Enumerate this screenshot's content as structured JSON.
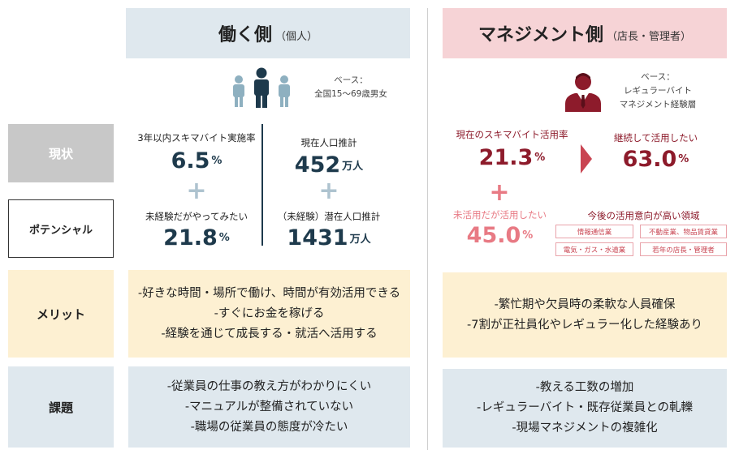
{
  "left_header": {
    "title": "働く側",
    "subtitle": "（個人）"
  },
  "right_header": {
    "title": "マネジメント側",
    "subtitle": "（店長・管理者）"
  },
  "left_base": {
    "line1": "ベース：",
    "line2": "全国15～69歳男女"
  },
  "right_base": {
    "line1": "ベース：",
    "line2": "レギュラーバイト",
    "line3": "マネジメント経験層"
  },
  "rows": {
    "current": "現状",
    "potential": "ポテンシャル",
    "merit": "メリット",
    "issues": "課題"
  },
  "left_stats": {
    "current_rate": {
      "label": "3年以内スキマバイト実施率",
      "value": "6.5",
      "unit": "%"
    },
    "current_pop": {
      "label": "現在人口推計",
      "value": "452",
      "unit": "万人"
    },
    "potential_rate": {
      "label": "未経験だがやってみたい",
      "value": "21.8",
      "unit": "%"
    },
    "potential_pop": {
      "label": "（未経験）潜在人口推計",
      "value": "1431",
      "unit": "万人"
    },
    "plus": "+"
  },
  "right_stats": {
    "current_rate": {
      "label": "現在のスキマバイト活用率",
      "value": "21.3",
      "unit": "%"
    },
    "continue_rate": {
      "label": "継続して活用したい",
      "value": "63.0",
      "unit": "%"
    },
    "potential_rate": {
      "label": "未活用だが活用したい",
      "value": "45.0",
      "unit": "%"
    },
    "industries_title": "今後の活用意向が高い領域",
    "industries": [
      "情報通信業",
      "不動産業、物品賃貸業",
      "電気・ガス・水道業",
      "若年の店長・管理者"
    ],
    "plus": "+"
  },
  "left_merits": [
    "-好きな時間・場所で働け、時間が有効活用できる",
    "-すぐにお金を稼げる",
    "-経験を通じて成長する・就活へ活用する"
  ],
  "right_merits": [
    "-繁忙期や欠員時の柔軟な人員確保",
    "-7割が正社員化やレギュラー化した経験あり"
  ],
  "left_issues": [
    "-従業員の仕事の教え方がわかりにくい",
    "-マニュアルが整備されていない",
    "-職場の従業員の態度が冷たい"
  ],
  "right_issues": [
    "-教える工数の増加",
    "-レギュラーバイト・既存従業員との軋轢",
    "-現場マネジメントの複雑化"
  ],
  "icons": {
    "people": "people-icon",
    "manager": "manager-icon"
  },
  "colors": {
    "navy": "#1e3a4c",
    "dark_red": "#8d1b2b",
    "pink": "#e87a84",
    "blue_bg": "#dfe8ee",
    "pink_bg": "#f6d3d6",
    "yellow_bg": "#fdf0d2",
    "gray_label": "#c8c8c8"
  }
}
